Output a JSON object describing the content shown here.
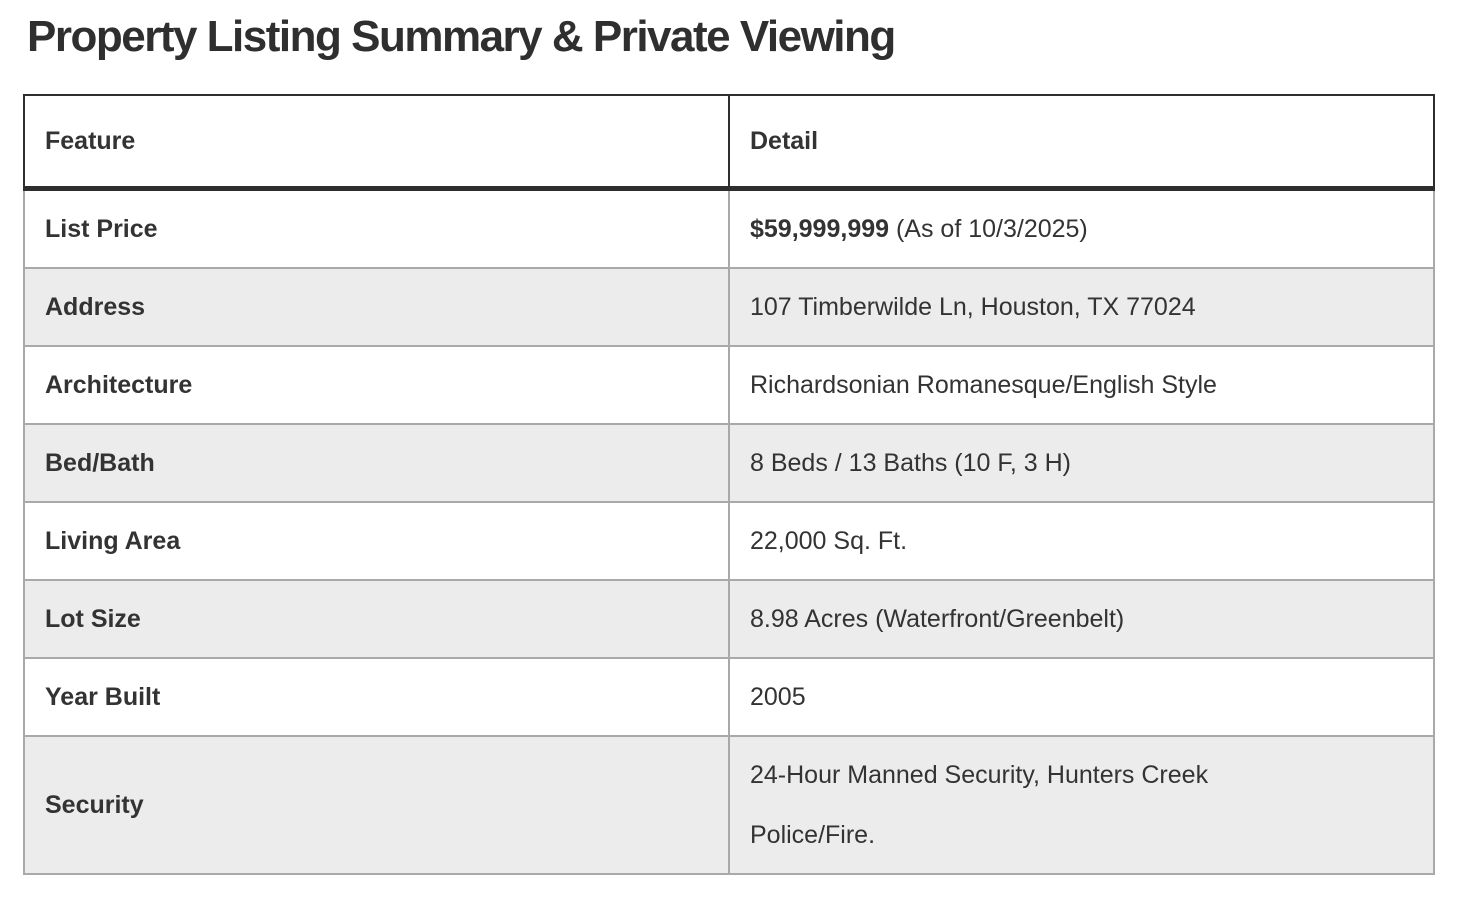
{
  "page": {
    "title": "Property Listing Summary & Private Viewing"
  },
  "table": {
    "headers": {
      "feature": "Feature",
      "detail": "Detail"
    },
    "rows": [
      {
        "feature": "List Price",
        "detail_bold": "$59,999,999",
        "detail_note": " (As of 10/3/2025)"
      },
      {
        "feature": "Address",
        "detail": "107 Timberwilde Ln, Houston, TX 77024"
      },
      {
        "feature": "Architecture",
        "detail": "Richardsonian Romanesque/English Style"
      },
      {
        "feature": "Bed/Bath",
        "detail": "8 Beds / 13 Baths (10 F, 3 H)"
      },
      {
        "feature": "Living Area",
        "detail": "22,000 Sq. Ft."
      },
      {
        "feature": "Lot Size",
        "detail": "8.98 Acres (Waterfront/Greenbelt)"
      },
      {
        "feature": "Year Built",
        "detail": "2005"
      },
      {
        "feature": "Security",
        "detail": "24-Hour Manned Security, Hunters Creek\nPolice/Fire."
      }
    ]
  },
  "colors": {
    "page_bg": "#ffffff",
    "title_color": "#2f2f2f",
    "text_color": "#333333",
    "header_border": "#2e2e2e",
    "grid_border": "#a9a9a9",
    "stripe_bg": "#ececec"
  }
}
